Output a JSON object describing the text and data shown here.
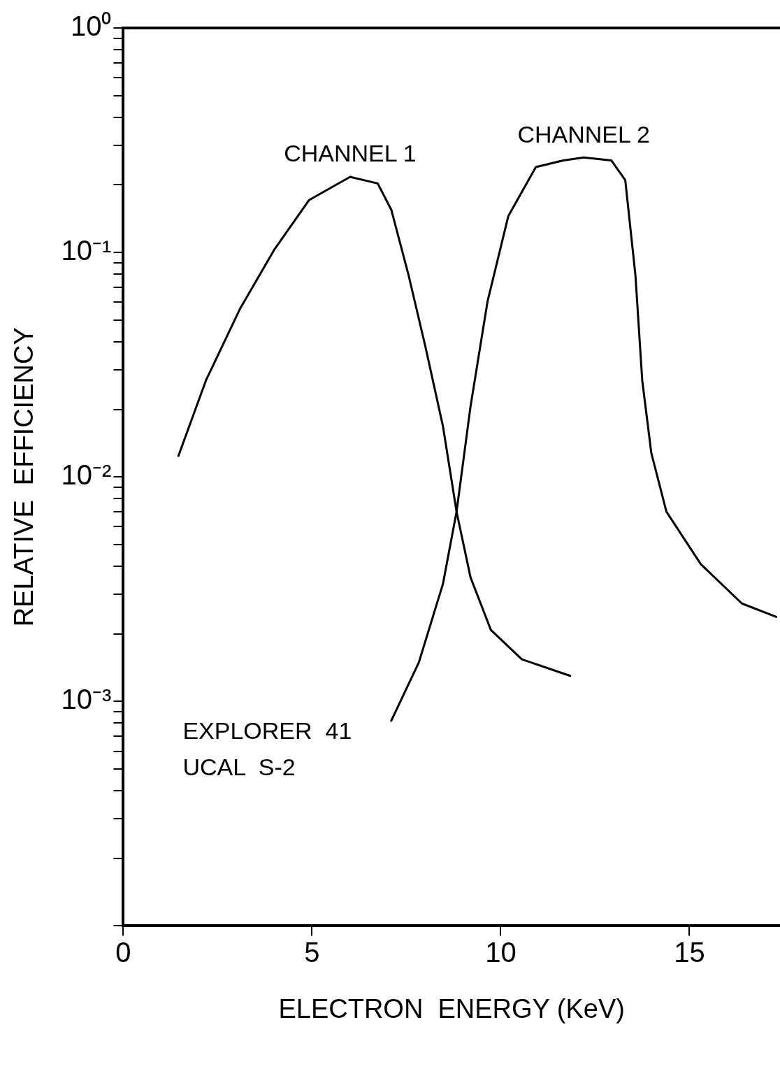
{
  "chart_data": {
    "type": "line",
    "xlabel": "ELECTRON  ENERGY (KeV)",
    "ylabel": "RELATIVE  EFFICIENCY",
    "log": "y",
    "grid": false,
    "legend": false,
    "marker": "none",
    "line_style": "solid",
    "xlim": [
      0,
      17.4
    ],
    "xticks": [
      0,
      5,
      10,
      15
    ],
    "ylim": [
      0.0001,
      1
    ],
    "yticks": [
      {
        "value": 0.0001,
        "label": null
      },
      {
        "value": 0.0002,
        "label": null
      },
      {
        "value": 0.0003,
        "label": null
      },
      {
        "value": 0.0004,
        "label": null
      },
      {
        "value": 0.0005,
        "label": null
      },
      {
        "value": 0.0006,
        "label": null
      },
      {
        "value": 0.0007,
        "label": null
      },
      {
        "value": 0.0008,
        "label": null
      },
      {
        "value": 0.0009,
        "label": null
      },
      {
        "value": 0.001,
        "label": "10⁻³"
      },
      {
        "value": 0.002,
        "label": null
      },
      {
        "value": 0.003,
        "label": null
      },
      {
        "value": 0.004,
        "label": null
      },
      {
        "value": 0.005,
        "label": null
      },
      {
        "value": 0.006,
        "label": null
      },
      {
        "value": 0.007,
        "label": null
      },
      {
        "value": 0.008,
        "label": null
      },
      {
        "value": 0.009,
        "label": null
      },
      {
        "value": 0.01,
        "label": "10⁻²"
      },
      {
        "value": 0.02,
        "label": null
      },
      {
        "value": 0.03,
        "label": null
      },
      {
        "value": 0.04,
        "label": null
      },
      {
        "value": 0.05,
        "label": null
      },
      {
        "value": 0.06,
        "label": null
      },
      {
        "value": 0.07,
        "label": null
      },
      {
        "value": 0.08,
        "label": null
      },
      {
        "value": 0.09,
        "label": null
      },
      {
        "value": 0.1,
        "label": "10⁻¹"
      },
      {
        "value": 0.2,
        "label": null
      },
      {
        "value": 0.3,
        "label": null
      },
      {
        "value": 0.4,
        "label": null
      },
      {
        "value": 0.5,
        "label": null
      },
      {
        "value": 0.6,
        "label": null
      },
      {
        "value": 0.7,
        "label": null
      },
      {
        "value": 0.8,
        "label": null
      },
      {
        "value": 0.9,
        "label": null
      },
      {
        "value": 1,
        "label": "10⁰"
      }
    ],
    "series": [
      {
        "name": "CHANNEL 1",
        "color": "#000000",
        "x": [
          1.46,
          2.19,
          3.1,
          4.01,
          4.92,
          6.01,
          6.74,
          7.1,
          7.56,
          8.01,
          8.47,
          8.83,
          9.2,
          9.74,
          10.56,
          11.84
        ],
        "values": [
          0.0124,
          0.0269,
          0.0564,
          0.1035,
          0.171,
          0.217,
          0.203,
          0.155,
          0.079,
          0.0377,
          0.0168,
          0.007,
          0.00357,
          0.00208,
          0.00154,
          0.0013
        ]
      },
      {
        "name": "CHANNEL 2",
        "color": "#000000",
        "x": [
          7.1,
          7.83,
          8.47,
          8.83,
          9.2,
          9.65,
          10.2,
          10.93,
          11.66,
          12.2,
          12.93,
          13.3,
          13.57,
          13.75,
          13.99,
          14.39,
          15.3,
          16.39,
          17.3
        ],
        "values": [
          0.00082,
          0.00149,
          0.00334,
          0.007,
          0.0206,
          0.0604,
          0.145,
          0.24,
          0.257,
          0.265,
          0.257,
          0.21,
          0.079,
          0.0269,
          0.0128,
          0.007,
          0.00409,
          0.00273,
          0.00238
        ]
      }
    ],
    "annotations": [
      "EXPLORER  41",
      "UCAL  S-2"
    ]
  }
}
